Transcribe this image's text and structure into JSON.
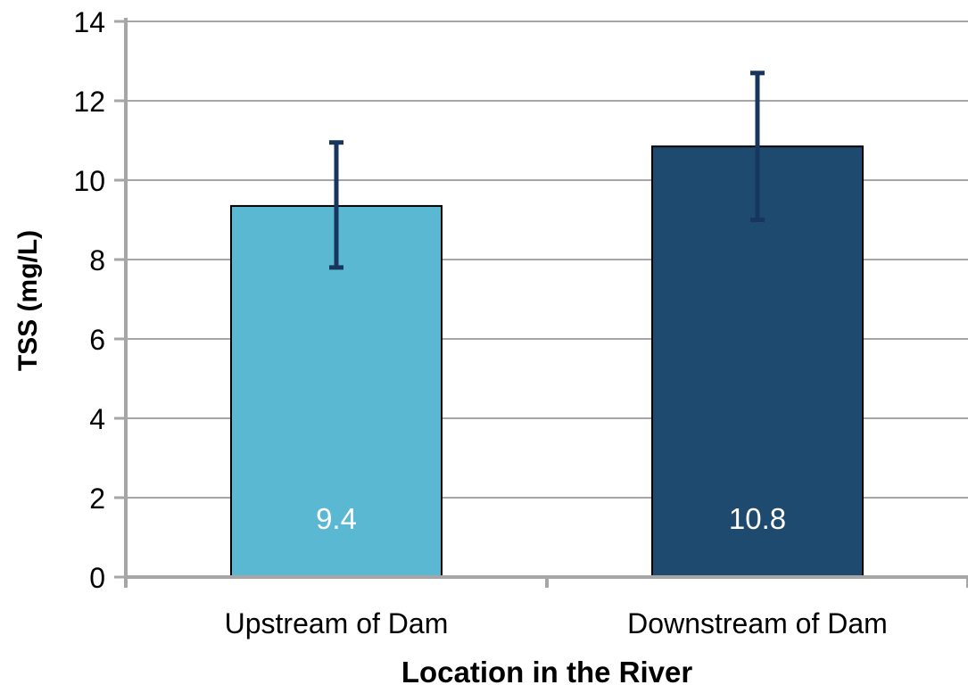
{
  "chart_data": {
    "type": "bar",
    "title": "",
    "xlabel": "Location in the River",
    "ylabel": "TSS (mg/L)",
    "categories": [
      "Upstream of Dam",
      "Downstream of Dam"
    ],
    "values": [
      9.35,
      10.85
    ],
    "data_labels": [
      "9.4",
      "10.8"
    ],
    "error_low": [
      7.8,
      9.0
    ],
    "error_high": [
      10.95,
      12.7
    ],
    "ylim": [
      0,
      14
    ],
    "y_ticks": [
      "0",
      "2",
      "4",
      "6",
      "8",
      "10",
      "12",
      "14"
    ],
    "y_tick_values": [
      0,
      2,
      4,
      6,
      8,
      10,
      12,
      14
    ],
    "grid": true,
    "legend": "none"
  },
  "colors": {
    "bars": [
      "#5BB8D2",
      "#1F4A70"
    ],
    "error_bar": "#17365D",
    "grid": "#A6A6A6",
    "axis": "#A6A6A6",
    "bar_outline": "#000000",
    "data_label": "#ffffff",
    "text": "#000000"
  }
}
